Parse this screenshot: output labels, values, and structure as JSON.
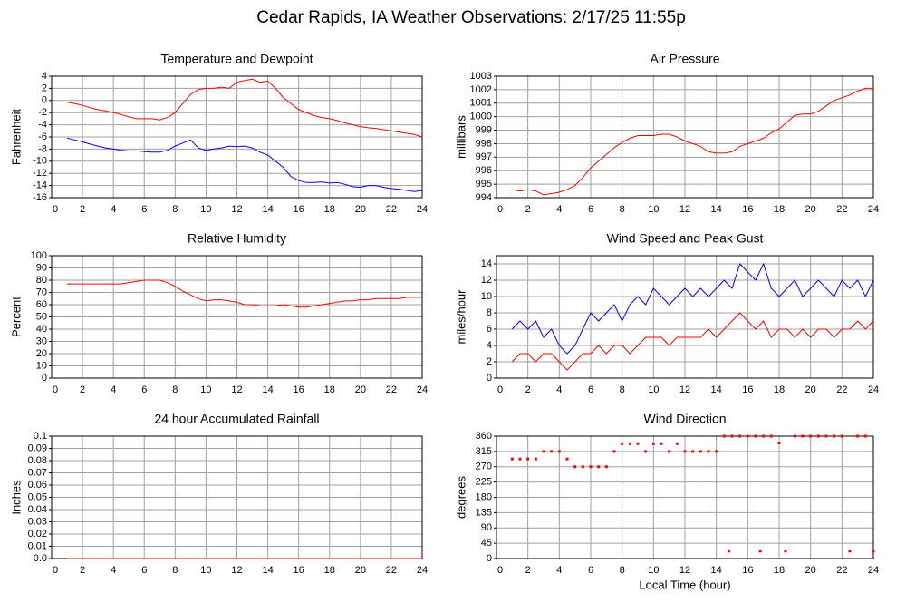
{
  "title": "Cedar Rapids, IA Weather Observations: 2/17/25 11:55p",
  "chart_data": [
    {
      "type": "line",
      "title": "Temperature and Dewpoint",
      "ylabel": "Fahrenheit",
      "x": [
        1,
        1.5,
        2,
        2.5,
        3,
        3.5,
        4,
        4.5,
        5,
        5.5,
        6,
        6.5,
        7,
        7.5,
        8,
        8.5,
        9,
        9.5,
        10,
        10.5,
        11,
        11.5,
        12,
        12.5,
        13,
        13.5,
        14,
        14.5,
        15,
        15.5,
        16,
        16.5,
        17,
        17.5,
        18,
        18.5,
        19,
        19.5,
        20,
        20.5,
        21,
        21.5,
        22,
        22.5,
        23,
        23.5,
        24
      ],
      "xlim": [
        0,
        24
      ],
      "xticks": [
        0,
        2,
        4,
        6,
        8,
        10,
        12,
        14,
        16,
        18,
        20,
        22,
        24
      ],
      "ylim": [
        -16,
        4
      ],
      "yticks": [
        -16,
        -14,
        -12,
        -10,
        -8,
        -6,
        -4,
        -2,
        0,
        2,
        4
      ],
      "grid": true,
      "series": [
        {
          "color": "#ff0000",
          "values": [
            -0.3,
            -0.5,
            -0.8,
            -1.2,
            -1.5,
            -1.7,
            -2,
            -2.3,
            -2.7,
            -3,
            -3,
            -3,
            -3.2,
            -2.8,
            -2,
            -0.5,
            1,
            1.8,
            2,
            2,
            2.2,
            2,
            3,
            3.3,
            3.5,
            3,
            3.2,
            2,
            0.5,
            -0.5,
            -1.5,
            -2,
            -2.5,
            -2.8,
            -3,
            -3.3,
            -3.7,
            -4,
            -4.3,
            -4.5,
            -4.6,
            -4.8,
            -5,
            -5.2,
            -5.4,
            -5.6,
            -6
          ]
        },
        {
          "color": "#0000ff",
          "values": [
            -6.2,
            -6.5,
            -6.8,
            -7.2,
            -7.5,
            -7.8,
            -8,
            -8.2,
            -8.3,
            -8.3,
            -8.4,
            -8.5,
            -8.5,
            -8.2,
            -7.5,
            -7,
            -6.5,
            -7.8,
            -8.2,
            -8,
            -7.8,
            -7.5,
            -7.6,
            -7.5,
            -7.8,
            -8.5,
            -9,
            -10,
            -11,
            -12.5,
            -13.2,
            -13.5,
            -13.5,
            -13.4,
            -13.6,
            -13.5,
            -13.8,
            -14.2,
            -14.3,
            -14,
            -14,
            -14.3,
            -14.5,
            -14.6,
            -14.8,
            -15,
            -14.8
          ]
        }
      ]
    },
    {
      "type": "line",
      "title": "Air Pressure",
      "ylabel": "millibars",
      "x": [
        1,
        1.5,
        2,
        2.5,
        3,
        3.5,
        4,
        4.5,
        5,
        5.5,
        6,
        6.5,
        7,
        7.5,
        8,
        8.5,
        9,
        9.5,
        10,
        10.5,
        11,
        11.5,
        12,
        12.5,
        13,
        13.5,
        14,
        14.5,
        15,
        15.5,
        16,
        16.5,
        17,
        17.5,
        18,
        18.5,
        19,
        19.5,
        20,
        20.5,
        21,
        21.5,
        22,
        22.5,
        23,
        23.5,
        24
      ],
      "xlim": [
        0,
        24
      ],
      "xticks": [
        0,
        2,
        4,
        6,
        8,
        10,
        12,
        14,
        16,
        18,
        20,
        22,
        24
      ],
      "ylim": [
        994,
        1003
      ],
      "yticks": [
        994,
        995,
        996,
        997,
        998,
        999,
        1000,
        1001,
        1002,
        1003
      ],
      "grid": true,
      "series": [
        {
          "color": "#ff0000",
          "values": [
            994.6,
            994.5,
            994.6,
            994.5,
            994.2,
            994.3,
            994.4,
            994.6,
            994.9,
            995.5,
            996.2,
            996.7,
            997.2,
            997.7,
            998.1,
            998.4,
            998.6,
            998.6,
            998.6,
            998.7,
            998.7,
            998.5,
            998.2,
            998,
            997.8,
            997.4,
            997.3,
            997.3,
            997.4,
            997.8,
            998,
            998.2,
            998.4,
            998.8,
            999.1,
            999.6,
            1000.1,
            1000.2,
            1000.2,
            1000.4,
            1000.8,
            1001.2,
            1001.4,
            1001.6,
            1001.9,
            1002.1,
            1002.1
          ]
        }
      ]
    },
    {
      "type": "line",
      "title": "Relative Humidity",
      "ylabel": "Percent",
      "x": [
        1,
        1.5,
        2,
        2.5,
        3,
        3.5,
        4,
        4.5,
        5,
        5.5,
        6,
        6.5,
        7,
        7.5,
        8,
        8.5,
        9,
        9.5,
        10,
        10.5,
        11,
        11.5,
        12,
        12.5,
        13,
        13.5,
        14,
        14.5,
        15,
        15.5,
        16,
        16.5,
        17,
        17.5,
        18,
        18.5,
        19,
        19.5,
        20,
        20.5,
        21,
        21.5,
        22,
        22.5,
        23,
        23.5,
        24
      ],
      "xlim": [
        0,
        24
      ],
      "xticks": [
        0,
        2,
        4,
        6,
        8,
        10,
        12,
        14,
        16,
        18,
        20,
        22,
        24
      ],
      "ylim": [
        0,
        100
      ],
      "yticks": [
        0,
        10,
        20,
        30,
        40,
        50,
        60,
        70,
        80,
        90,
        100
      ],
      "grid": true,
      "series": [
        {
          "color": "#ff0000",
          "values": [
            77,
            77,
            77,
            77,
            77,
            77,
            77,
            77,
            78,
            79,
            80,
            80,
            80,
            78,
            75,
            71,
            68,
            65,
            63,
            64,
            64,
            63,
            62,
            60,
            60,
            59,
            59,
            59,
            60,
            59,
            58,
            58,
            59,
            60,
            61,
            62,
            63,
            63,
            64,
            64,
            65,
            65,
            65,
            65,
            66,
            66,
            66
          ]
        }
      ]
    },
    {
      "type": "line",
      "title": "Wind Speed and Peak Gust",
      "ylabel": "miles/hour",
      "x": [
        1,
        1.5,
        2,
        2.5,
        3,
        3.5,
        4,
        4.5,
        5,
        5.5,
        6,
        6.5,
        7,
        7.5,
        8,
        8.5,
        9,
        9.5,
        10,
        10.5,
        11,
        11.5,
        12,
        12.5,
        13,
        13.5,
        14,
        14.5,
        15,
        15.5,
        16,
        16.5,
        17,
        17.5,
        18,
        18.5,
        19,
        19.5,
        20,
        20.5,
        21,
        21.5,
        22,
        22.5,
        23,
        23.5,
        24
      ],
      "xlim": [
        0,
        24
      ],
      "xticks": [
        0,
        2,
        4,
        6,
        8,
        10,
        12,
        14,
        16,
        18,
        20,
        22,
        24
      ],
      "ylim": [
        0,
        15
      ],
      "yticks": [
        0,
        2,
        4,
        6,
        8,
        10,
        12,
        14
      ],
      "grid": true,
      "series": [
        {
          "color": "#0000ff",
          "values": [
            6,
            7,
            6,
            7,
            5,
            6,
            4,
            3,
            4,
            6,
            8,
            7,
            8,
            9,
            7,
            9,
            10,
            9,
            11,
            10,
            9,
            10,
            11,
            10,
            11,
            10,
            11,
            12,
            11,
            14,
            13,
            12,
            14,
            11,
            10,
            11,
            12,
            10,
            11,
            12,
            11,
            10,
            12,
            11,
            12,
            10,
            12
          ]
        },
        {
          "color": "#ff0000",
          "values": [
            2,
            3,
            3,
            2,
            3,
            3,
            2,
            1,
            2,
            3,
            3,
            4,
            3,
            4,
            4,
            3,
            4,
            5,
            5,
            5,
            4,
            5,
            5,
            5,
            5,
            6,
            5,
            6,
            7,
            8,
            7,
            6,
            7,
            5,
            6,
            6,
            5,
            6,
            5,
            6,
            6,
            5,
            6,
            6,
            7,
            6,
            7
          ]
        }
      ]
    },
    {
      "type": "line",
      "title": "24 hour Accumulated Rainfall",
      "ylabel": "Inches",
      "x": [
        1,
        1.5,
        2,
        2.5,
        3,
        3.5,
        4,
        4.5,
        5,
        5.5,
        6,
        6.5,
        7,
        7.5,
        8,
        8.5,
        9,
        9.5,
        10,
        10.5,
        11,
        11.5,
        12,
        12.5,
        13,
        13.5,
        14,
        14.5,
        15,
        15.5,
        16,
        16.5,
        17,
        17.5,
        18,
        18.5,
        19,
        19.5,
        20,
        20.5,
        21,
        21.5,
        22,
        22.5,
        23,
        23.5,
        24
      ],
      "xlim": [
        0,
        24
      ],
      "xticks": [
        0,
        2,
        4,
        6,
        8,
        10,
        12,
        14,
        16,
        18,
        20,
        22,
        24
      ],
      "ylim": [
        0,
        0.1
      ],
      "yticks": [
        {
          "value": 0,
          "label": "0.0"
        },
        0.01,
        0.02,
        0.03,
        0.04,
        0.05,
        0.06,
        0.07,
        0.08,
        0.09,
        0.1
      ],
      "grid": true,
      "series": [
        {
          "color": "#ff0000",
          "values": [
            0,
            0,
            0,
            0,
            0,
            0,
            0,
            0,
            0,
            0,
            0,
            0,
            0,
            0,
            0,
            0,
            0,
            0,
            0,
            0,
            0,
            0,
            0,
            0,
            0,
            0,
            0,
            0,
            0,
            0,
            0,
            0,
            0,
            0,
            0,
            0,
            0,
            0,
            0,
            0,
            0,
            0,
            0,
            0,
            0,
            0,
            0
          ]
        }
      ]
    },
    {
      "type": "scatter",
      "title": "Wind Direction",
      "ylabel": "degrees",
      "xlabel": "Local Time (hour)",
      "x": [
        1,
        1.5,
        2,
        2.5,
        3,
        3.5,
        4,
        4.5,
        5,
        5.5,
        6,
        6.5,
        7,
        7.5,
        8,
        8.5,
        9,
        9.5,
        10,
        10.5,
        11,
        11.5,
        12,
        12.5,
        13,
        13.5,
        14,
        14.5,
        14.8,
        15,
        15.5,
        16,
        16.5,
        16.8,
        17,
        17.5,
        18,
        18.4,
        19,
        19.5,
        20,
        20.5,
        21,
        21.5,
        22,
        22.5,
        23,
        23.5,
        24
      ],
      "xlim": [
        0,
        24
      ],
      "xticks": [
        0,
        2,
        4,
        6,
        8,
        10,
        12,
        14,
        16,
        18,
        20,
        22,
        24
      ],
      "ylim": [
        0,
        360
      ],
      "yticks": [
        0,
        45,
        90,
        135,
        180,
        225,
        270,
        315,
        360
      ],
      "grid": true,
      "series": [
        {
          "color": "#ff0000",
          "values": [
            293,
            293,
            293,
            293,
            315,
            315,
            315,
            293,
            270,
            270,
            270,
            270,
            270,
            315,
            338,
            338,
            338,
            315,
            338,
            338,
            315,
            338,
            315,
            315,
            315,
            315,
            315,
            360,
            22,
            360,
            360,
            360,
            360,
            22,
            360,
            360,
            340,
            22,
            360,
            360,
            360,
            360,
            360,
            360,
            360,
            22,
            360,
            360,
            22
          ]
        }
      ]
    }
  ]
}
